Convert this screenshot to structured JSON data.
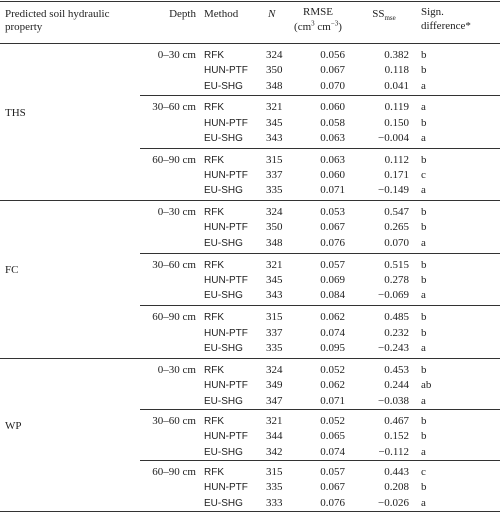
{
  "header": {
    "property": "Predicted soil hydraulic property",
    "depth": "Depth",
    "method": "Method",
    "n": "N",
    "rmse": "RMSE",
    "rmse_unit": [
      "(cm",
      "3",
      " cm",
      "−3",
      ")"
    ],
    "ss": "SS",
    "ss_sub": "mse",
    "sign": [
      "Sign.",
      "difference*"
    ]
  },
  "groups": [
    {
      "property": "THS",
      "depths": [
        {
          "depth": "0–30 cm",
          "rows": [
            [
              "RFK",
              "324",
              "0.056",
              "0.382",
              "b"
            ],
            [
              "HUN-PTF",
              "350",
              "0.067",
              "0.118",
              "b"
            ],
            [
              "EU-SHG",
              "348",
              "0.070",
              "0.041",
              "a"
            ]
          ]
        },
        {
          "depth": "30–60 cm",
          "rows": [
            [
              "RFK",
              "321",
              "0.060",
              "0.119",
              "a"
            ],
            [
              "HUN-PTF",
              "345",
              "0.058",
              "0.150",
              "b"
            ],
            [
              "EU-SHG",
              "343",
              "0.063",
              "−0.004",
              "a"
            ]
          ]
        },
        {
          "depth": "60–90 cm",
          "rows": [
            [
              "RFK",
              "315",
              "0.063",
              "0.112",
              "b"
            ],
            [
              "HUN-PTF",
              "337",
              "0.060",
              "0.171",
              "c"
            ],
            [
              "EU-SHG",
              "335",
              "0.071",
              "−0.149",
              "a"
            ]
          ]
        }
      ]
    },
    {
      "property": "FC",
      "depths": [
        {
          "depth": "0–30 cm",
          "rows": [
            [
              "RFK",
              "324",
              "0.053",
              "0.547",
              "b"
            ],
            [
              "HUN-PTF",
              "350",
              "0.067",
              "0.265",
              "b"
            ],
            [
              "EU-SHG",
              "348",
              "0.076",
              "0.070",
              "a"
            ]
          ]
        },
        {
          "depth": "30–60 cm",
          "rows": [
            [
              "RFK",
              "321",
              "0.057",
              "0.515",
              "b"
            ],
            [
              "HUN-PTF",
              "345",
              "0.069",
              "0.278",
              "b"
            ],
            [
              "EU-SHG",
              "343",
              "0.084",
              "−0.069",
              "a"
            ]
          ]
        },
        {
          "depth": "60–90 cm",
          "rows": [
            [
              "RFK",
              "315",
              "0.062",
              "0.485",
              "b"
            ],
            [
              "HUN-PTF",
              "337",
              "0.074",
              "0.232",
              "b"
            ],
            [
              "EU-SHG",
              "335",
              "0.095",
              "−0.243",
              "a"
            ]
          ]
        }
      ]
    },
    {
      "property": "WP",
      "depths": [
        {
          "depth": "0–30 cm",
          "rows": [
            [
              "RFK",
              "324",
              "0.052",
              "0.453",
              "b"
            ],
            [
              "HUN-PTF",
              "349",
              "0.062",
              "0.244",
              "ab"
            ],
            [
              "EU-SHG",
              "347",
              "0.071",
              "−0.038",
              "a"
            ]
          ]
        },
        {
          "depth": "30–60 cm",
          "rows": [
            [
              "RFK",
              "321",
              "0.052",
              "0.467",
              "b"
            ],
            [
              "HUN-PTF",
              "344",
              "0.065",
              "0.152",
              "b"
            ],
            [
              "EU-SHG",
              "342",
              "0.074",
              "−0.112",
              "a"
            ]
          ]
        },
        {
          "depth": "60–90 cm",
          "rows": [
            [
              "RFK",
              "315",
              "0.057",
              "0.443",
              "c"
            ],
            [
              "HUN-PTF",
              "335",
              "0.067",
              "0.208",
              "b"
            ],
            [
              "EU-SHG",
              "333",
              "0.076",
              "−0.026",
              "a"
            ]
          ]
        }
      ]
    }
  ]
}
